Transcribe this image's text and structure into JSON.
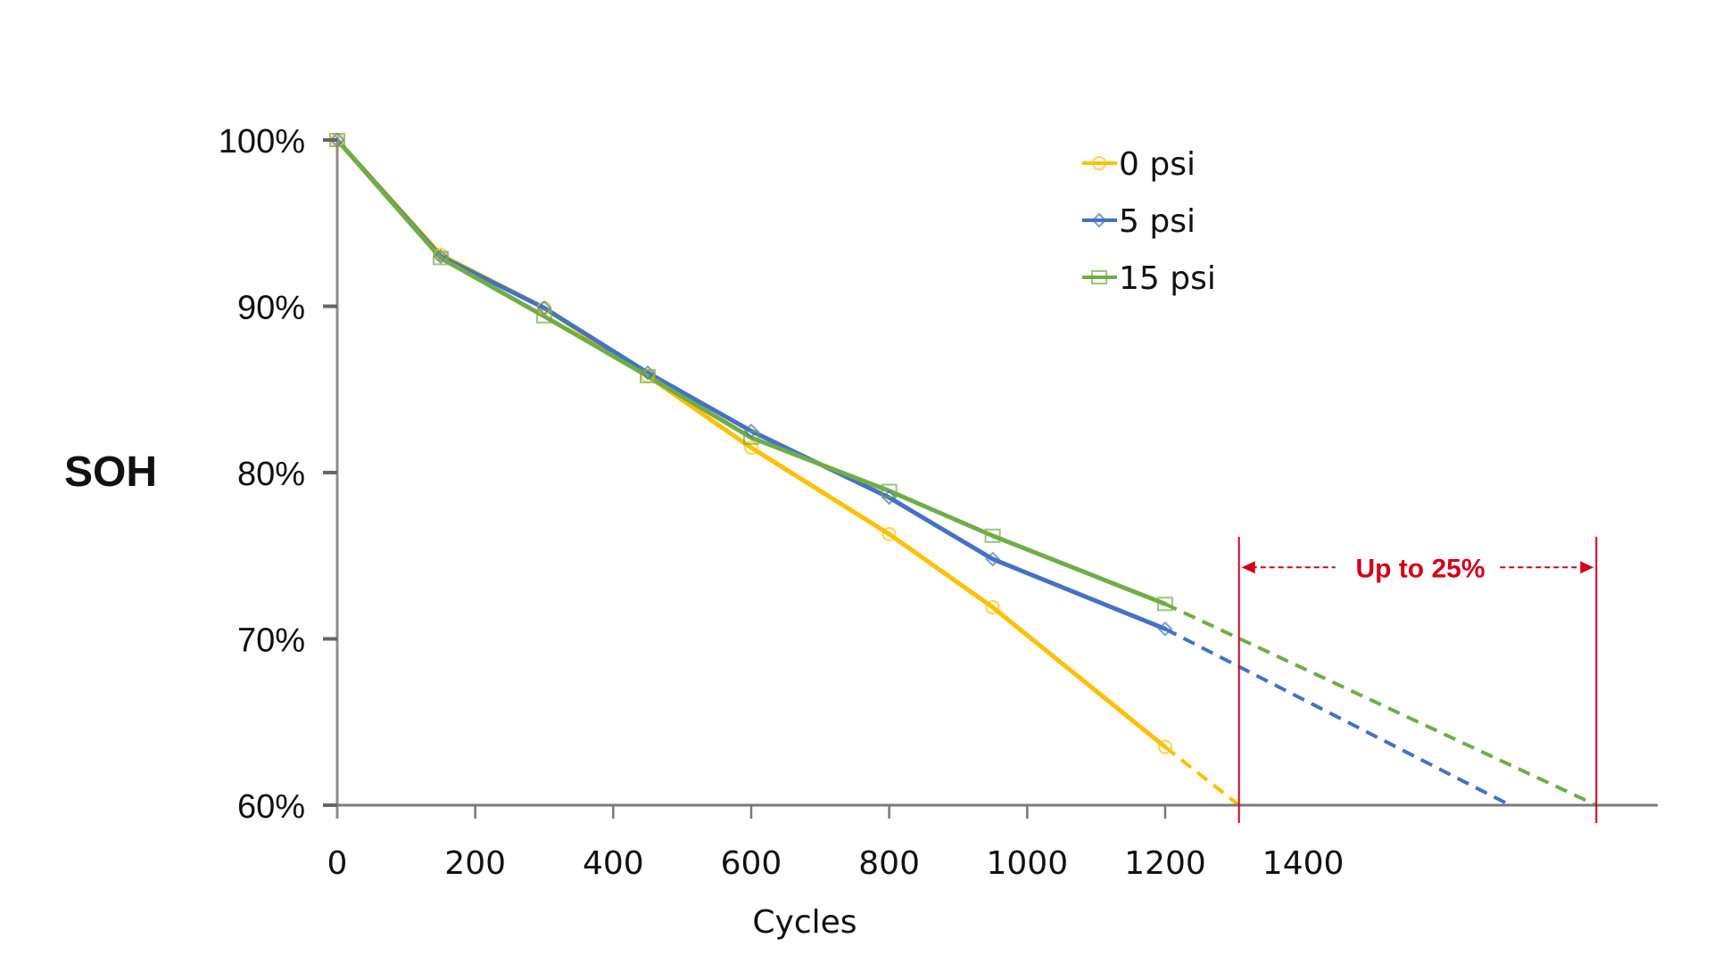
{
  "chart_data": {
    "type": "line",
    "title": "",
    "xlabel": "Cycles",
    "ylabel": "SOH",
    "xlim": [
      0,
      1900
    ],
    "ylim": [
      60,
      100
    ],
    "x_ticks": [
      0,
      200,
      400,
      600,
      800,
      1000,
      1200,
      1400
    ],
    "x_tick_labels": [
      "0",
      "200",
      "400",
      "600",
      "800",
      "1000",
      "1200",
      "1400"
    ],
    "y_ticks": [
      60,
      70,
      80,
      90,
      100
    ],
    "y_tick_labels": [
      "60%",
      "70%",
      "80%",
      "90%",
      "100%"
    ],
    "grid": false,
    "legend_position": "top-right",
    "series": [
      {
        "name": "0 psi",
        "color": "#FFC000",
        "marker": "circle",
        "x": [
          0,
          150,
          300,
          450,
          600,
          800,
          950,
          1200
        ],
        "values": [
          100,
          93.1,
          89.9,
          85.8,
          81.5,
          76.3,
          71.9,
          63.5
        ],
        "extrapolation": {
          "x": [
            1200,
            1307
          ],
          "values": [
            63.5,
            60
          ]
        }
      },
      {
        "name": "5 psi",
        "color": "#4472C4",
        "marker": "diamond",
        "x": [
          0,
          150,
          300,
          450,
          600,
          800,
          950,
          1200
        ],
        "values": [
          100,
          93.0,
          89.9,
          86.0,
          82.5,
          78.5,
          74.8,
          70.6
        ],
        "extrapolation": {
          "x": [
            1200,
            1700
          ],
          "values": [
            70.6,
            60
          ]
        }
      },
      {
        "name": "15 psi",
        "color": "#70AD47",
        "marker": "square",
        "x": [
          0,
          150,
          300,
          450,
          600,
          800,
          950,
          1200
        ],
        "values": [
          100,
          92.9,
          89.4,
          85.8,
          82.1,
          78.9,
          76.2,
          72.1
        ],
        "extrapolation": {
          "x": [
            1200,
            1825
          ],
          "values": [
            72.1,
            60
          ]
        }
      }
    ],
    "annotations": [
      {
        "text": "Up to 25%",
        "color": "#D0021B",
        "from_x": 1307,
        "to_x": 1825,
        "at_y": 74.3
      }
    ]
  }
}
